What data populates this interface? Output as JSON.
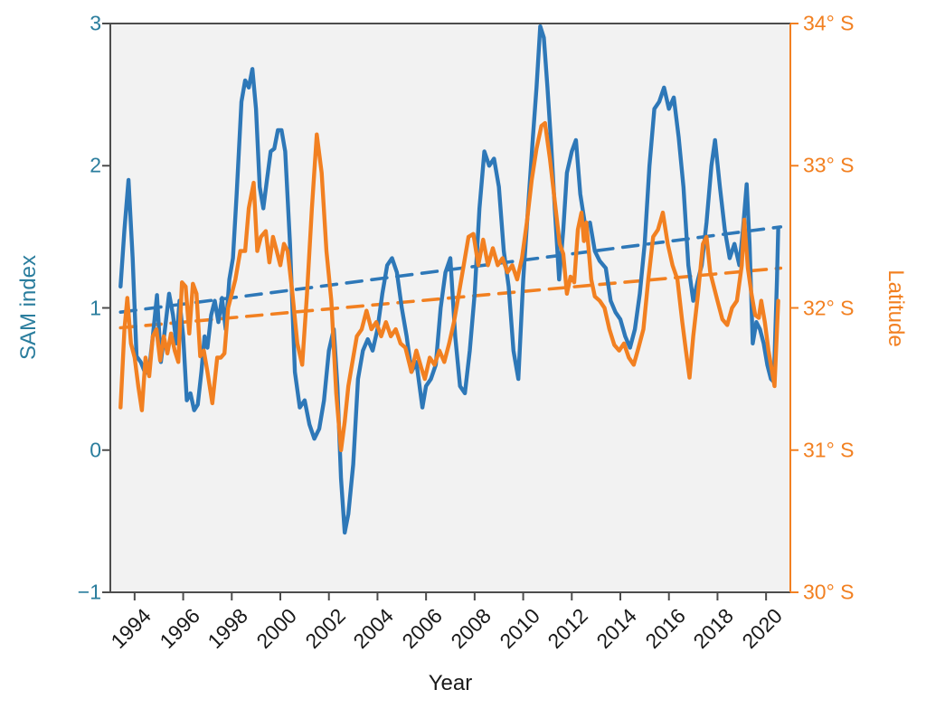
{
  "page": {
    "background": "#ffffff"
  },
  "colors": {
    "sam_teal_text": "#2a7d9d",
    "sam_line_blue": "#2e78b8",
    "latitude_orange": "#f28021",
    "x_text": "#1a1a1a",
    "spine_gray": "#4d4d4d",
    "plot_background": "#f2f2f2"
  },
  "chart_data": {
    "type": "line",
    "title": "",
    "xlabel": "Year",
    "ylabel_left": "SAM index",
    "ylabel_right": "Latitude",
    "legend_position": "none",
    "grid": false,
    "x_range": [
      1993.0,
      2021.0
    ],
    "x_ticks": [
      1994,
      1996,
      1998,
      2000,
      2002,
      2004,
      2006,
      2008,
      2010,
      2012,
      2014,
      2016,
      2018,
      2020
    ],
    "x_tick_labels": [
      "1994",
      "1996",
      "1998",
      "2000",
      "2002",
      "2004",
      "2006",
      "2008",
      "2010",
      "2012",
      "2014",
      "2016",
      "2018",
      "2020"
    ],
    "y_left_axis": {
      "range": [
        -1,
        3
      ],
      "ticks": [
        3,
        2,
        1,
        0,
        -1
      ],
      "tick_labels": [
        "3",
        "2",
        "1",
        "0",
        "−1"
      ]
    },
    "y_right_axis": {
      "range_degrees_south": [
        30,
        34
      ],
      "ticks": [
        34,
        33,
        32,
        31,
        30
      ],
      "tick_labels": [
        "34° S",
        "33° S",
        "32° S",
        "31° S",
        "30° S"
      ]
    },
    "series": [
      {
        "name": "SAM index",
        "axis": "left",
        "style": "solid",
        "color": "#2e78b8",
        "x": [
          1993.42,
          1993.58,
          1993.75,
          1993.92,
          1994.08,
          1994.25,
          1994.42,
          1994.58,
          1994.75,
          1994.92,
          1995.08,
          1995.25,
          1995.42,
          1995.58,
          1995.72,
          1995.85,
          1996.0,
          1996.15,
          1996.3,
          1996.45,
          1996.6,
          1996.75,
          1996.88,
          1997.0,
          1997.15,
          1997.3,
          1997.45,
          1997.6,
          1997.75,
          1997.9,
          1998.05,
          1998.2,
          1998.4,
          1998.55,
          1998.7,
          1998.85,
          1999.0,
          1999.15,
          1999.3,
          1999.45,
          1999.6,
          1999.75,
          1999.9,
          2000.05,
          2000.2,
          2000.4,
          2000.6,
          2000.8,
          2001.0,
          2001.2,
          2001.4,
          2001.6,
          2001.8,
          2002.0,
          2002.2,
          2002.35,
          2002.5,
          2002.65,
          2002.8,
          2003.0,
          2003.2,
          2003.4,
          2003.6,
          2003.8,
          2004.0,
          2004.2,
          2004.4,
          2004.6,
          2004.8,
          2005.0,
          2005.2,
          2005.4,
          2005.6,
          2005.85,
          2006.0,
          2006.2,
          2006.4,
          2006.6,
          2006.8,
          2007.0,
          2007.2,
          2007.4,
          2007.6,
          2007.8,
          2008.0,
          2008.2,
          2008.4,
          2008.6,
          2008.8,
          2009.0,
          2009.2,
          2009.4,
          2009.6,
          2009.8,
          2010.0,
          2010.2,
          2010.4,
          2010.55,
          2010.7,
          2010.85,
          2011.0,
          2011.15,
          2011.3,
          2011.48,
          2011.65,
          2011.8,
          2012.0,
          2012.17,
          2012.35,
          2012.55,
          2012.75,
          2012.95,
          2013.15,
          2013.4,
          2013.6,
          2013.8,
          2014.0,
          2014.2,
          2014.4,
          2014.6,
          2014.8,
          2015.0,
          2015.2,
          2015.4,
          2015.6,
          2015.8,
          2016.0,
          2016.2,
          2016.4,
          2016.6,
          2016.8,
          2017.0,
          2017.2,
          2017.35,
          2017.55,
          2017.75,
          2017.9,
          2018.1,
          2018.3,
          2018.5,
          2018.7,
          2018.9,
          2019.05,
          2019.2,
          2019.32,
          2019.45,
          2019.6,
          2019.75,
          2019.9,
          2020.05,
          2020.2,
          2020.32,
          2020.45,
          2020.5
        ],
        "y": [
          1.15,
          1.55,
          1.9,
          1.35,
          0.66,
          0.62,
          0.55,
          0.54,
          0.8,
          1.09,
          0.62,
          0.85,
          1.1,
          0.95,
          0.75,
          1.05,
          0.8,
          0.35,
          0.4,
          0.28,
          0.32,
          0.55,
          0.8,
          0.72,
          0.95,
          1.05,
          0.9,
          1.07,
          0.85,
          1.2,
          1.35,
          1.8,
          2.45,
          2.6,
          2.55,
          2.68,
          2.4,
          1.85,
          1.7,
          1.9,
          2.1,
          2.12,
          2.25,
          2.25,
          2.1,
          1.45,
          0.55,
          0.3,
          0.35,
          0.18,
          0.08,
          0.15,
          0.35,
          0.7,
          0.85,
          0.45,
          -0.2,
          -0.58,
          -0.45,
          -0.1,
          0.5,
          0.7,
          0.78,
          0.7,
          0.85,
          1.1,
          1.3,
          1.35,
          1.25,
          1.0,
          0.8,
          0.55,
          0.62,
          0.3,
          0.45,
          0.5,
          0.6,
          1.0,
          1.25,
          1.35,
          0.8,
          0.45,
          0.4,
          0.7,
          1.1,
          1.7,
          2.1,
          2.0,
          2.05,
          1.85,
          1.4,
          1.15,
          0.7,
          0.5,
          1.2,
          1.7,
          2.2,
          2.55,
          2.98,
          2.9,
          2.55,
          2.15,
          1.7,
          1.2,
          1.55,
          1.95,
          2.1,
          2.18,
          1.8,
          1.58,
          1.6,
          1.4,
          1.33,
          1.28,
          1.05,
          0.97,
          0.92,
          0.8,
          0.72,
          0.85,
          1.1,
          1.45,
          2.0,
          2.4,
          2.45,
          2.55,
          2.4,
          2.48,
          2.2,
          1.85,
          1.3,
          1.05,
          1.2,
          1.3,
          1.6,
          2.0,
          2.18,
          1.85,
          1.55,
          1.35,
          1.45,
          1.3,
          1.55,
          1.87,
          1.45,
          0.75,
          0.9,
          0.85,
          0.75,
          0.6,
          0.5,
          0.48,
          1.2,
          1.56
        ]
      },
      {
        "name": "Latitude",
        "axis": "right",
        "style": "solid",
        "color": "#f28021",
        "units": "degrees South",
        "x": [
          1993.42,
          1993.58,
          1993.7,
          1993.85,
          1994.0,
          1994.15,
          1994.3,
          1994.45,
          1994.6,
          1994.75,
          1994.9,
          1995.05,
          1995.2,
          1995.35,
          1995.5,
          1995.65,
          1995.8,
          1995.95,
          1996.1,
          1996.25,
          1996.4,
          1996.55,
          1996.7,
          1996.85,
          1997.0,
          1997.2,
          1997.4,
          1997.55,
          1997.7,
          1997.85,
          1998.0,
          1998.15,
          1998.35,
          1998.55,
          1998.7,
          1998.9,
          1999.05,
          1999.2,
          1999.4,
          1999.55,
          1999.7,
          1999.85,
          2000.0,
          2000.15,
          2000.3,
          2000.5,
          2000.7,
          2000.9,
          2001.1,
          2001.3,
          2001.5,
          2001.7,
          2001.9,
          2002.1,
          2002.3,
          2002.5,
          2002.65,
          2002.8,
          2002.95,
          2003.15,
          2003.35,
          2003.55,
          2003.75,
          2003.95,
          2004.15,
          2004.35,
          2004.55,
          2004.75,
          2004.95,
          2005.15,
          2005.4,
          2005.6,
          2005.8,
          2005.95,
          2006.15,
          2006.35,
          2006.55,
          2006.75,
          2006.95,
          2007.15,
          2007.35,
          2007.55,
          2007.75,
          2007.95,
          2008.15,
          2008.35,
          2008.55,
          2008.75,
          2008.95,
          2009.15,
          2009.35,
          2009.55,
          2009.75,
          2009.95,
          2010.15,
          2010.35,
          2010.55,
          2010.75,
          2010.9,
          2011.1,
          2011.3,
          2011.5,
          2011.65,
          2011.8,
          2011.95,
          2012.1,
          2012.25,
          2012.4,
          2012.5,
          2012.6,
          2012.8,
          2012.95,
          2013.15,
          2013.35,
          2013.55,
          2013.75,
          2013.95,
          2014.15,
          2014.35,
          2014.55,
          2014.75,
          2014.95,
          2015.15,
          2015.35,
          2015.55,
          2015.75,
          2015.95,
          2016.15,
          2016.35,
          2016.55,
          2016.7,
          2016.85,
          2017.0,
          2017.2,
          2017.4,
          2017.55,
          2017.7,
          2017.85,
          2018.0,
          2018.2,
          2018.4,
          2018.6,
          2018.8,
          2019.0,
          2019.1,
          2019.25,
          2019.4,
          2019.55,
          2019.7,
          2019.8,
          2019.95,
          2020.1,
          2020.35,
          2020.5
        ],
        "y": [
          31.3,
          31.85,
          32.07,
          31.75,
          31.65,
          31.45,
          31.28,
          31.65,
          31.52,
          31.8,
          31.85,
          31.63,
          31.8,
          31.68,
          31.82,
          31.7,
          31.62,
          32.18,
          32.15,
          31.82,
          32.17,
          32.1,
          31.66,
          31.7,
          31.55,
          31.33,
          31.65,
          31.65,
          31.68,
          32.0,
          32.1,
          32.2,
          32.4,
          32.4,
          32.7,
          32.88,
          32.4,
          32.5,
          32.54,
          32.32,
          32.5,
          32.4,
          32.3,
          32.45,
          32.4,
          32.1,
          31.75,
          31.6,
          32.1,
          32.7,
          33.22,
          32.95,
          32.4,
          32.05,
          31.4,
          31.0,
          31.2,
          31.45,
          31.6,
          31.8,
          31.85,
          31.98,
          31.85,
          31.9,
          31.8,
          31.9,
          31.8,
          31.85,
          31.75,
          31.72,
          31.55,
          31.7,
          31.58,
          31.5,
          31.65,
          31.6,
          31.7,
          31.62,
          31.75,
          31.9,
          32.1,
          32.3,
          32.5,
          32.52,
          32.3,
          32.48,
          32.3,
          32.42,
          32.3,
          32.35,
          32.25,
          32.3,
          32.2,
          32.35,
          32.6,
          32.9,
          33.12,
          33.28,
          33.3,
          33.05,
          32.75,
          32.45,
          32.38,
          32.1,
          32.22,
          32.18,
          32.55,
          32.67,
          32.47,
          32.6,
          32.2,
          32.08,
          32.05,
          32.0,
          31.85,
          31.74,
          31.7,
          31.75,
          31.65,
          31.6,
          31.72,
          31.85,
          32.2,
          32.5,
          32.55,
          32.67,
          32.45,
          32.3,
          32.2,
          31.9,
          31.7,
          31.51,
          31.8,
          32.1,
          32.45,
          32.5,
          32.25,
          32.15,
          32.05,
          31.92,
          31.88,
          32.0,
          32.05,
          32.3,
          32.62,
          32.28,
          32.1,
          31.95,
          31.93,
          32.05,
          31.9,
          31.7,
          31.45,
          32.05
        ]
      },
      {
        "name": "SAM index linear trend",
        "axis": "left",
        "style": "dashed",
        "color": "#2e78b8",
        "x": [
          1993.42,
          2020.6
        ],
        "y": [
          0.97,
          1.57
        ]
      },
      {
        "name": "Latitude linear trend",
        "axis": "right",
        "style": "dashed",
        "color": "#f28021",
        "units": "degrees South",
        "x": [
          1993.42,
          2020.6
        ],
        "y": [
          31.86,
          32.28
        ]
      }
    ]
  }
}
